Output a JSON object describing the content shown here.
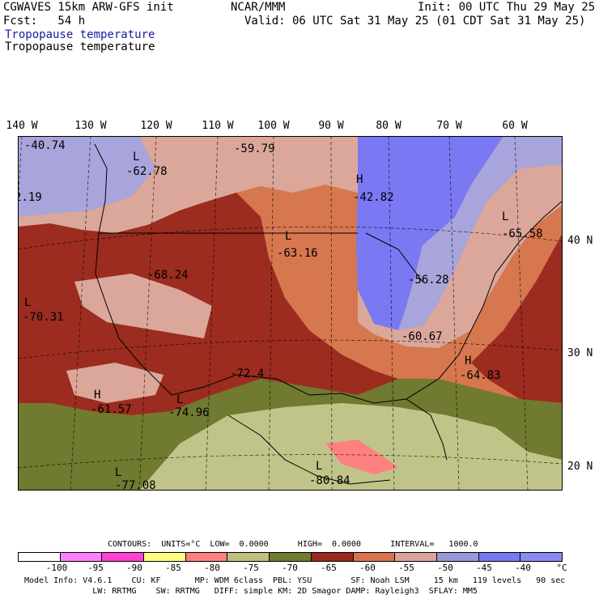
{
  "header": {
    "model": "CGWAVES 15km ARW-GFS init",
    "org": "NCAR/MMM",
    "init": "Init: 00 UTC Thu 29 May 25",
    "fcst": "Fcst:   54 h",
    "valid": "Valid: 06 UTC Sat 31 May 25 (01 CDT Sat 31 May 25)",
    "field_blue": "Tropopause temperature",
    "field_black": "Tropopause temperature"
  },
  "longitude_labels": [
    "140 W",
    "130 W",
    "120 W",
    "110 W",
    "100 W",
    "90 W",
    "80 W",
    "70 W",
    "60 W"
  ],
  "latitude_labels": [
    "40 N",
    "30 N",
    "20 N"
  ],
  "map_labels": [
    {
      "text": "-40.74"
    },
    {
      "text": "-59.79"
    },
    {
      "text": "L"
    },
    {
      "text": "-62.78"
    },
    {
      "text": "-42.82"
    },
    {
      "text": "H"
    },
    {
      "text": "-65.58"
    },
    {
      "text": "L"
    },
    {
      "text": "2.19"
    },
    {
      "text": "L"
    },
    {
      "text": "-63.16"
    },
    {
      "text": "-68.24"
    },
    {
      "text": "-56.28"
    },
    {
      "text": "L"
    },
    {
      "text": "-70.31"
    },
    {
      "text": "-60.67"
    },
    {
      "text": "H"
    },
    {
      "text": "-64.83"
    },
    {
      "text": "-72.4"
    },
    {
      "text": "H"
    },
    {
      "text": "-61.57"
    },
    {
      "text": "L"
    },
    {
      "text": "-74.96"
    },
    {
      "text": "L"
    },
    {
      "text": "-77.08"
    },
    {
      "text": "L"
    },
    {
      "text": "-80.84"
    }
  ],
  "contours": {
    "line": "CONTOURS:  UNITS=°C  LOW=  0.0000      HIGH=  0.0000      INTERVAL=   1000.0"
  },
  "colorbar": {
    "colors": [
      "#ffffff",
      "#ff80ff",
      "#ff40d0",
      "#ffff80",
      "#ff8080",
      "#c0c080",
      "#707a30",
      "#9a2a1e",
      "#d9734f",
      "#dba39a",
      "#9a96d8",
      "#7878f0",
      "#8a8af0",
      "#7070ff"
    ],
    "ticks": [
      "-100",
      "-95",
      "-90",
      "-85",
      "-80",
      "-75",
      "-70",
      "-65",
      "-60",
      "-55",
      "-50",
      "-45",
      "-40",
      "°C"
    ]
  },
  "footer": {
    "line1": "Model Info: V4.6.1    CU: KF       MP: WDM 6class  PBL: YSU        SF: Noah LSM     15 km   119 levels   90 sec",
    "line2": "              LW: RRTMG    SW: RRTMG   DIFF: simple KM: 2D Smagor DAMP: Rayleigh3  SFLAY: MM5"
  },
  "palette": {
    "purple_light": "#a8a4dc",
    "blue": "#7a78f2",
    "pink": "#dba79b",
    "orange": "#d6774f",
    "red": "#9b2c1f",
    "olive": "#707a30",
    "sage": "#c0c488"
  }
}
